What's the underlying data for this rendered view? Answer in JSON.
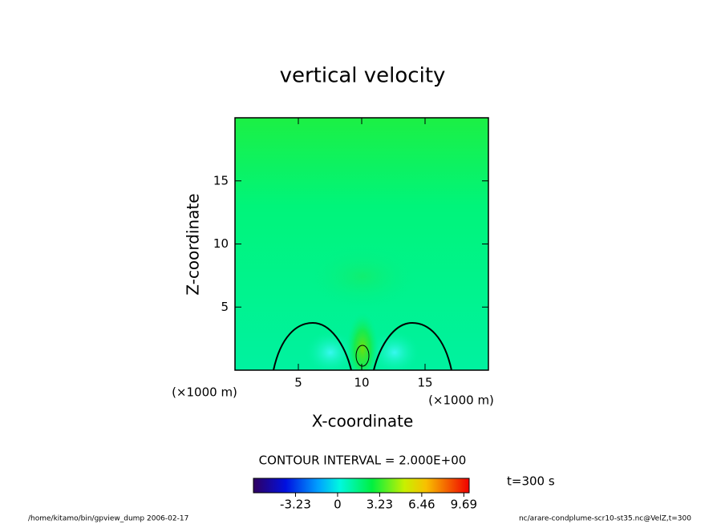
{
  "chart_data": {
    "type": "heatmap",
    "title": "vertical velocity",
    "x_label": "X-coordinate",
    "y_label": "Z-coordinate",
    "x_unit": "(×1000 m)",
    "y_unit": "(×1000 m)",
    "xlim": [
      0,
      20
    ],
    "ylim": [
      0,
      20
    ],
    "xticks": [
      5,
      10,
      15
    ],
    "yticks": [
      5,
      10,
      15
    ],
    "colorbar": {
      "label": "CONTOUR INTERVAL = 2.000E+00",
      "lim": [
        -6.46,
        10.1
      ],
      "ticks": [
        -3.23,
        0,
        3.23,
        6.46,
        9.69
      ]
    },
    "time_label": "t=300 s"
  },
  "footer": {
    "left": "/home/kitamo/bin/gpview_dump  2006-02-17",
    "right": "nc/arare-condplume-scr10-st35.nc@VelZ,t=300"
  }
}
